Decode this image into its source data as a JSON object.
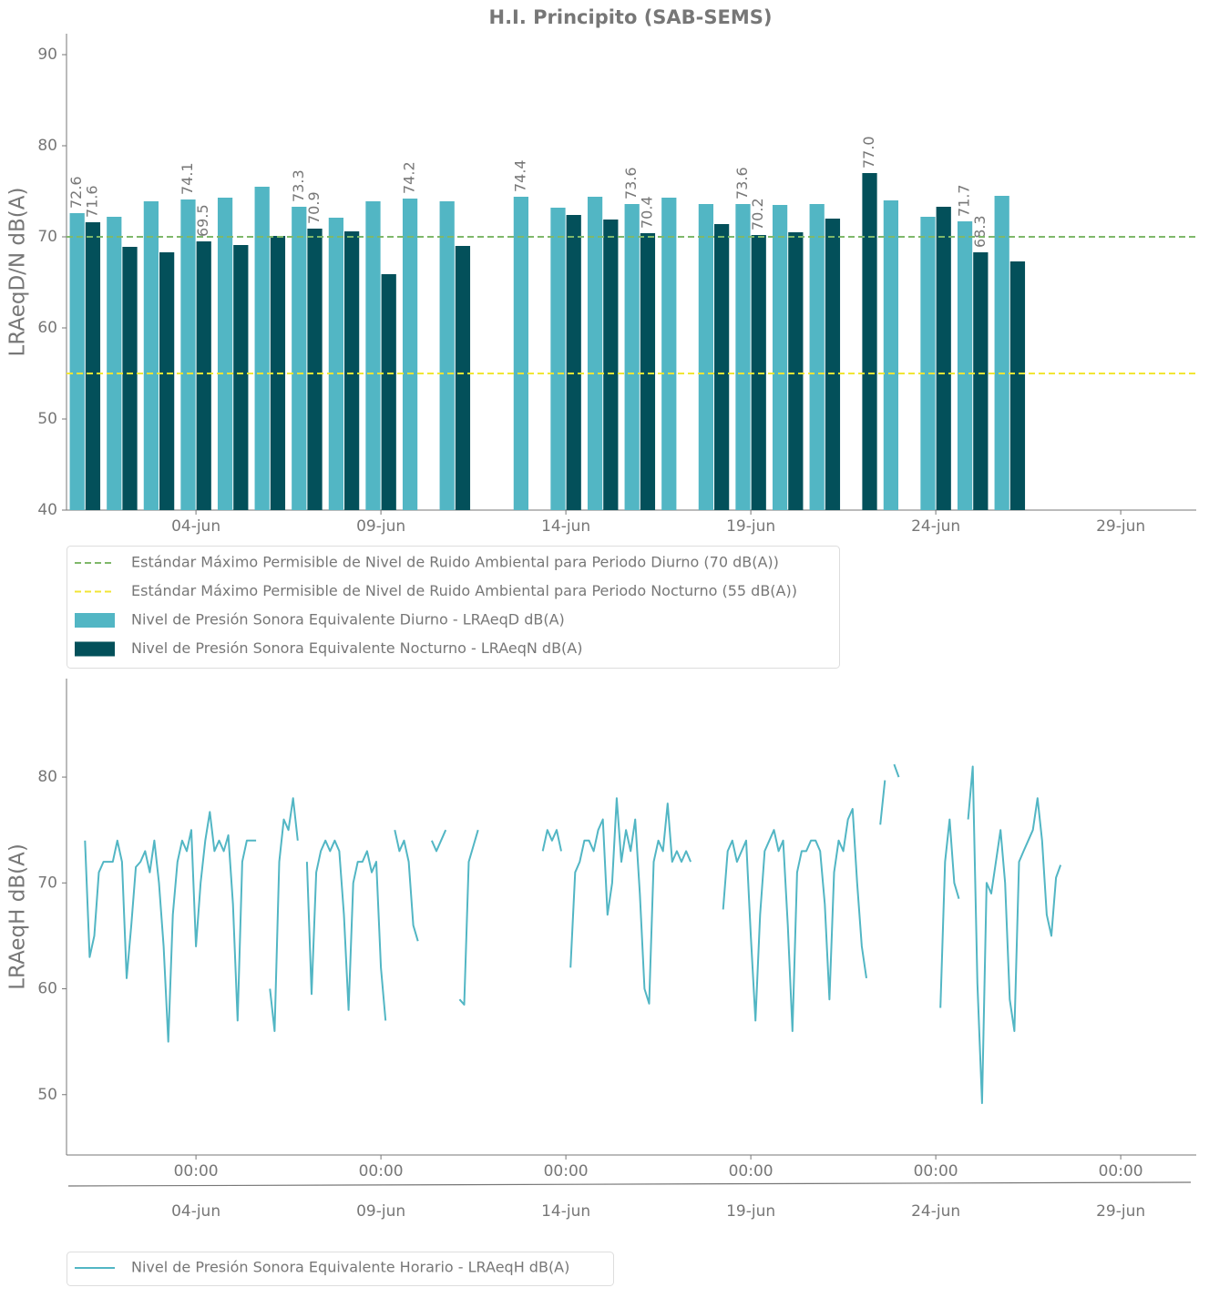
{
  "chart_data": [
    {
      "type": "bar",
      "title": "H.I. Principito (SAB-SEMS)",
      "ylabel": "LRAeqD/N dB(A)",
      "x": [
        "01-jun",
        "02-jun",
        "03-jun",
        "04-jun",
        "05-jun",
        "06-jun",
        "07-jun",
        "08-jun",
        "09-jun",
        "10-jun",
        "11-jun",
        "12-jun",
        "13-jun",
        "14-jun",
        "15-jun",
        "16-jun",
        "17-jun",
        "18-jun",
        "19-jun",
        "20-jun",
        "21-jun",
        "22-jun",
        "23-jun",
        "24-jun",
        "25-jun",
        "26-jun"
      ],
      "series": [
        {
          "name": "Nivel de Presión Sonora Equivalente Diurno - LRAeqD dB(A)",
          "color": "#52b6c4",
          "values": [
            72.6,
            72.2,
            73.9,
            74.1,
            74.3,
            75.5,
            73.3,
            72.1,
            73.9,
            74.2,
            73.9,
            null,
            74.4,
            73.2,
            74.4,
            73.6,
            74.3,
            73.6,
            73.6,
            73.5,
            73.6,
            null,
            74.0,
            72.2,
            71.7,
            74.5
          ],
          "value_labels": [
            "72.6",
            null,
            null,
            "74.1",
            null,
            null,
            "73.3",
            null,
            null,
            "74.2",
            null,
            null,
            "74.4",
            null,
            null,
            "73.6",
            null,
            null,
            "73.6",
            null,
            null,
            null,
            null,
            null,
            "71.7",
            null
          ]
        },
        {
          "name": "Nivel de Presión Sonora Equivalente Nocturno - LRAeqN dB(A)",
          "color": "#03505a",
          "values": [
            71.6,
            68.9,
            68.3,
            69.5,
            69.1,
            70.1,
            70.9,
            70.6,
            65.9,
            null,
            69.0,
            null,
            null,
            72.4,
            71.9,
            70.4,
            null,
            71.4,
            70.2,
            70.5,
            72.0,
            77.0,
            null,
            73.3,
            68.3,
            67.3
          ],
          "value_labels": [
            "71.6",
            null,
            null,
            "69.5",
            null,
            null,
            "70.9",
            null,
            null,
            null,
            null,
            null,
            null,
            null,
            null,
            "70.4",
            null,
            null,
            "70.2",
            null,
            null,
            "77.0",
            null,
            null,
            "68.3",
            null
          ]
        }
      ],
      "hlines": [
        {
          "name": "Estándar Máximo Permisible de Nivel de Ruido Ambiental para Periodo Diurno (70 dB(A))",
          "value": 70,
          "color": "#7fb86a"
        },
        {
          "name": "Estándar Máximo Permisible de Nivel de Ruido Ambiental para Periodo Nocturno (55 dB(A))",
          "value": 55,
          "color": "#f2e534"
        }
      ],
      "xlim": [
        "31-may 12:00",
        "01-jul 01:00"
      ],
      "ylim": [
        40,
        92.3
      ],
      "yticks": [
        40,
        50,
        60,
        70,
        80,
        90
      ],
      "xticks": [
        "04-jun",
        "09-jun",
        "14-jun",
        "19-jun",
        "24-jun",
        "29-jun"
      ]
    },
    {
      "type": "line",
      "ylabel": "LRAeqH dB(A)",
      "x": [
        "01-jun 00:00",
        "01-jun 03:00",
        "01-jun 06:00",
        "01-jun 09:00",
        "01-jun 12:00",
        "01-jun 15:00",
        "01-jun 18:00",
        "01-jun 21:00",
        "02-jun 00:00",
        "02-jun 03:00",
        "02-jun 06:00",
        "02-jun 09:00",
        "02-jun 12:00",
        "02-jun 15:00",
        "02-jun 18:00",
        "02-jun 21:00",
        "03-jun 00:00",
        "03-jun 03:00",
        "03-jun 06:00",
        "03-jun 09:00",
        "03-jun 12:00",
        "03-jun 15:00",
        "03-jun 18:00",
        "03-jun 21:00",
        "04-jun 00:00",
        "04-jun 03:00",
        "04-jun 06:00",
        "04-jun 09:00",
        "04-jun 12:00",
        "04-jun 15:00",
        "04-jun 18:00",
        "04-jun 21:00",
        "05-jun 00:00",
        "05-jun 03:00",
        "05-jun 06:00",
        "05-jun 09:00",
        "05-jun 12:00",
        "05-jun 15:00",
        "05-jun 18:00",
        "05-jun 21:00",
        "06-jun 00:00",
        "06-jun 03:00",
        "06-jun 06:00",
        "06-jun 09:00",
        "06-jun 12:00",
        "06-jun 15:00",
        "06-jun 18:00",
        "06-jun 21:00",
        "07-jun 00:00",
        "07-jun 03:00",
        "07-jun 06:00",
        "07-jun 09:00",
        "07-jun 12:00",
        "07-jun 15:00",
        "07-jun 18:00",
        "07-jun 21:00",
        "08-jun 00:00",
        "08-jun 03:00",
        "08-jun 06:00",
        "08-jun 09:00",
        "08-jun 12:00",
        "08-jun 15:00",
        "08-jun 18:00",
        "08-jun 21:00",
        "09-jun 00:00",
        "09-jun 03:00",
        "09-jun 06:00",
        "09-jun 09:00",
        "09-jun 12:00",
        "09-jun 15:00",
        "09-jun 18:00",
        "09-jun 21:00",
        "10-jun 00:00",
        "10-jun 03:00",
        "10-jun 06:00",
        "10-jun 09:00",
        "10-jun 12:00",
        "10-jun 15:00",
        "10-jun 18:00",
        "10-jun 21:00",
        "11-jun 00:00",
        "11-jun 03:00",
        "11-jun 06:00",
        "11-jun 09:00",
        "11-jun 12:00",
        "11-jun 15:00",
        "11-jun 18:00",
        "11-jun 21:00",
        "12-jun 00:00",
        "12-jun 03:00",
        "12-jun 06:00",
        "12-jun 09:00",
        "12-jun 12:00",
        "12-jun 15:00",
        "12-jun 18:00",
        "12-jun 21:00",
        "13-jun 00:00",
        "13-jun 03:00",
        "13-jun 06:00",
        "13-jun 09:00",
        "13-jun 12:00",
        "13-jun 15:00",
        "13-jun 18:00",
        "13-jun 21:00",
        "14-jun 00:00",
        "14-jun 03:00",
        "14-jun 06:00",
        "14-jun 09:00",
        "14-jun 12:00",
        "14-jun 15:00",
        "14-jun 18:00",
        "14-jun 21:00",
        "15-jun 00:00",
        "15-jun 03:00",
        "15-jun 06:00",
        "15-jun 09:00",
        "15-jun 12:00",
        "15-jun 15:00",
        "15-jun 18:00",
        "15-jun 21:00",
        "16-jun 00:00",
        "16-jun 03:00",
        "16-jun 06:00",
        "16-jun 09:00",
        "16-jun 12:00",
        "16-jun 15:00",
        "16-jun 18:00",
        "16-jun 21:00",
        "17-jun 00:00",
        "17-jun 03:00",
        "17-jun 06:00",
        "17-jun 09:00",
        "17-jun 12:00",
        "17-jun 15:00",
        "17-jun 18:00",
        "17-jun 21:00",
        "18-jun 00:00",
        "18-jun 03:00",
        "18-jun 06:00",
        "18-jun 09:00",
        "18-jun 12:00",
        "18-jun 15:00",
        "18-jun 18:00",
        "18-jun 21:00",
        "19-jun 00:00",
        "19-jun 03:00",
        "19-jun 06:00",
        "19-jun 09:00",
        "19-jun 12:00",
        "19-jun 15:00",
        "19-jun 18:00",
        "19-jun 21:00",
        "20-jun 00:00",
        "20-jun 03:00",
        "20-jun 06:00",
        "20-jun 09:00",
        "20-jun 12:00",
        "20-jun 15:00",
        "20-jun 18:00",
        "20-jun 21:00",
        "21-jun 00:00",
        "21-jun 03:00",
        "21-jun 06:00",
        "21-jun 09:00",
        "21-jun 12:00",
        "21-jun 15:00",
        "21-jun 18:00",
        "21-jun 21:00",
        "22-jun 00:00",
        "22-jun 03:00",
        "22-jun 06:00",
        "22-jun 09:00",
        "22-jun 12:00",
        "22-jun 15:00",
        "22-jun 18:00",
        "22-jun 21:00",
        "23-jun 00:00",
        "23-jun 03:00",
        "23-jun 06:00",
        "23-jun 09:00",
        "23-jun 12:00",
        "23-jun 15:00",
        "23-jun 18:00",
        "23-jun 21:00",
        "24-jun 00:00",
        "24-jun 03:00",
        "24-jun 06:00",
        "24-jun 09:00",
        "24-jun 12:00",
        "24-jun 15:00",
        "24-jun 18:00",
        "24-jun 21:00",
        "25-jun 00:00",
        "25-jun 03:00",
        "25-jun 06:00",
        "25-jun 09:00",
        "25-jun 12:00",
        "25-jun 15:00",
        "25-jun 18:00",
        "25-jun 21:00",
        "26-jun 00:00",
        "26-jun 03:00",
        "26-jun 06:00",
        "26-jun 09:00",
        "26-jun 12:00",
        "26-jun 15:00",
        "26-jun 18:00",
        "26-jun 21:00",
        "27-jun 00:00",
        "27-jun 03:00",
        "27-jun 06:00",
        "27-jun 09:00",
        "27-jun 12:00",
        "27-jun 15:00",
        "27-jun 18:00",
        "27-jun 21:00"
      ],
      "series": [
        {
          "name": "Nivel de Presión Sonora Equivalente Horario - LRAeqH dB(A)",
          "color": "#52b6c4",
          "values": [
            74,
            63,
            65,
            71,
            72,
            72,
            72,
            74,
            72,
            61,
            66,
            71.5,
            72,
            73,
            71,
            74,
            70,
            64,
            55,
            67,
            72,
            74,
            73,
            75,
            64,
            70,
            74,
            76.7,
            73,
            74,
            73,
            74.5,
            68,
            57,
            72,
            74,
            74,
            74,
            null,
            null,
            60,
            56,
            72,
            76,
            75,
            78,
            74,
            null,
            72,
            59.5,
            71,
            73,
            74,
            73,
            74,
            73,
            67,
            58,
            70,
            72,
            72,
            73,
            71,
            72,
            62,
            57,
            null,
            75,
            73,
            74,
            72,
            66,
            64.5,
            null,
            null,
            74,
            73,
            74,
            75,
            null,
            null,
            59,
            58.5,
            72,
            73.5,
            75,
            null,
            null,
            null,
            null,
            null,
            null,
            null,
            null,
            null,
            null,
            null,
            null,
            null,
            73,
            75,
            74,
            75,
            73,
            null,
            62,
            71,
            72,
            74,
            74,
            73,
            75,
            76,
            67,
            70,
            78,
            72,
            75,
            73,
            76,
            69,
            60,
            58.6,
            72,
            74,
            73,
            77.5,
            72,
            73,
            72,
            73,
            72,
            null,
            null,
            null,
            null,
            null,
            null,
            67.5,
            73,
            74,
            72,
            73,
            74,
            65,
            57,
            67,
            73,
            74,
            75,
            73,
            74,
            66,
            56,
            71,
            73,
            73,
            74,
            74,
            73,
            68,
            59,
            71,
            74,
            73,
            76,
            77,
            70,
            64,
            61,
            null,
            null,
            75.5,
            79.7,
            null,
            81.2,
            80,
            null,
            null,
            null,
            null,
            null,
            null,
            null,
            null,
            58.2,
            72,
            76,
            70,
            68.5,
            null,
            76,
            81,
            60.5,
            49.2,
            70,
            69,
            72,
            75,
            70,
            59,
            56,
            72,
            73,
            74,
            75,
            78,
            74,
            67,
            65,
            70.5,
            71.7,
            null,
            null,
            null,
            null
          ]
        }
      ],
      "xlim": [
        "31-may 12:00",
        "01-jul 01:00"
      ],
      "ylim": [
        44.3,
        89.3
      ],
      "yticks": [
        50,
        60,
        70,
        80
      ],
      "xticks": [
        {
          "value": "04-jun 00:00",
          "label": "00:00"
        },
        {
          "value": "09-jun 00:00",
          "label": "00:00"
        },
        {
          "value": "14-jun 00:00",
          "label": "00:00"
        },
        {
          "value": "19-jun 00:00",
          "label": "00:00"
        },
        {
          "value": "24-jun 00:00",
          "label": "00:00"
        },
        {
          "value": "29-jun 00:00",
          "label": "00:00"
        }
      ],
      "xticks_dates": [
        "04-jun",
        "09-jun",
        "14-jun",
        "19-jun",
        "24-jun",
        "29-jun"
      ]
    }
  ]
}
